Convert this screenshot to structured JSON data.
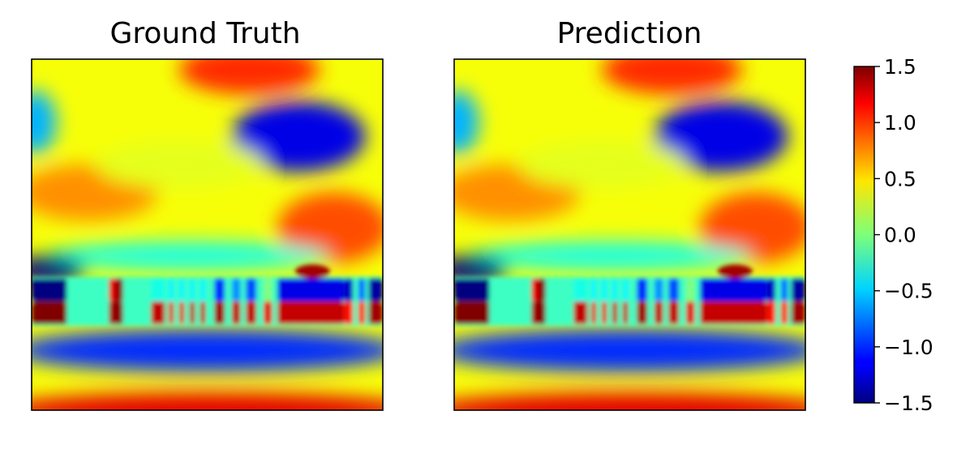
{
  "chart_data": [
    {
      "type": "heatmap",
      "title": "Ground Truth",
      "xticks": [],
      "yticks": [],
      "colormap": "jet",
      "vlim": [
        -1.5,
        1.5
      ],
      "field_description": [
        {
          "region": "top center",
          "value": 1.0
        },
        {
          "region": "upper right",
          "value": -1.2
        },
        {
          "region": "upper left edge",
          "value": -0.6
        },
        {
          "region": "left middle",
          "value": 0.7
        },
        {
          "region": "right middle",
          "value": 0.9
        },
        {
          "region": "dark band above stripes (left)",
          "value": -1.5
        },
        {
          "region": "stripe band",
          "value_range": [
            -1.5,
            1.5
          ]
        },
        {
          "region": "lower band",
          "value": -1.0
        },
        {
          "region": "bottom edge",
          "value": 1.2
        }
      ]
    },
    {
      "type": "heatmap",
      "title": "Prediction",
      "xticks": [],
      "yticks": [],
      "colormap": "jet",
      "vlim": [
        -1.5,
        1.5
      ],
      "field_description": [
        {
          "region": "top center",
          "value": 1.0
        },
        {
          "region": "upper right",
          "value": -1.2
        },
        {
          "region": "upper left edge",
          "value": -0.6
        },
        {
          "region": "left middle",
          "value": 0.7
        },
        {
          "region": "right middle",
          "value": 0.9
        },
        {
          "region": "dark band above stripes (left)",
          "value": -1.5
        },
        {
          "region": "stripe band",
          "value_range": [
            -1.5,
            1.5
          ]
        },
        {
          "region": "lower band",
          "value": -1.0
        },
        {
          "region": "bottom edge",
          "value": 1.2
        }
      ]
    }
  ],
  "colorbar": {
    "colormap": "jet",
    "range": [
      -1.5,
      1.5
    ],
    "ticks": [
      1.5,
      1.0,
      0.5,
      0.0,
      -0.5,
      -1.0,
      -1.5
    ],
    "tick_labels": [
      "1.5",
      "1.0",
      "0.5",
      "0.0",
      "−0.5",
      "−1.0",
      "−1.5"
    ]
  }
}
